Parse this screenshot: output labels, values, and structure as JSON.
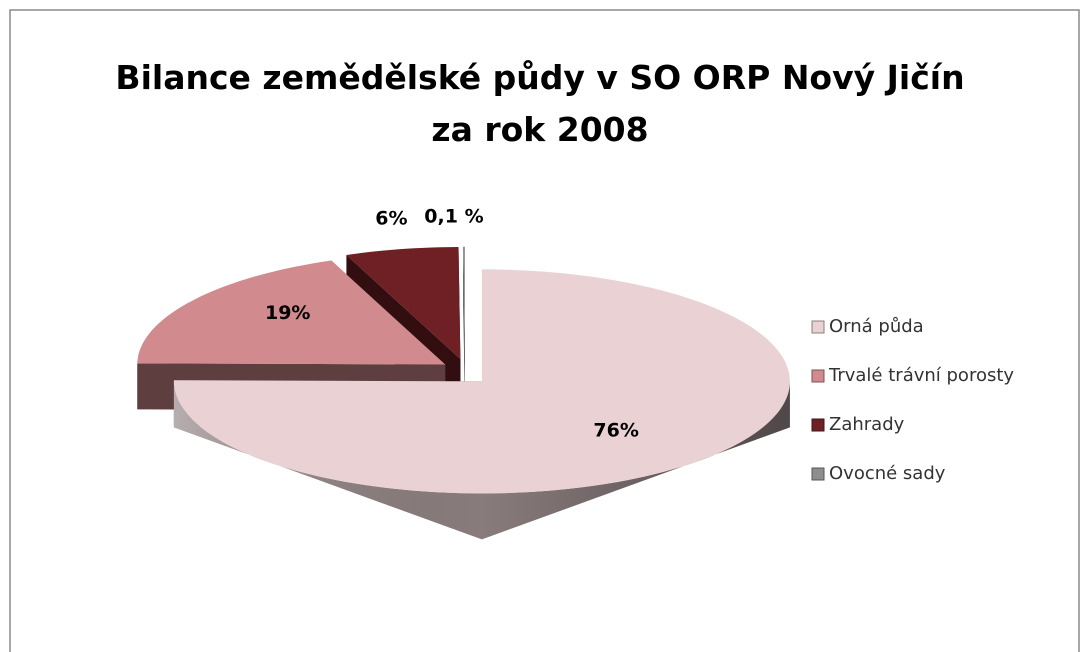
{
  "chart_data": {
    "type": "pie",
    "title": "Bilance zemědělské půdy v SO ORP Nový Jičín za rok 2008",
    "categories": [
      "Orná půda",
      "Trvalé trávní porosty",
      "Zahrady",
      "Ovocné sady"
    ],
    "values": [
      76,
      19,
      6,
      0.1
    ],
    "value_labels": [
      "76%",
      "19%",
      "6%",
      "0,1 %"
    ],
    "colors": [
      "#e9d1d4",
      "#d18a8d",
      "#6e2024",
      "#8e8e8e"
    ],
    "legend": "right"
  }
}
